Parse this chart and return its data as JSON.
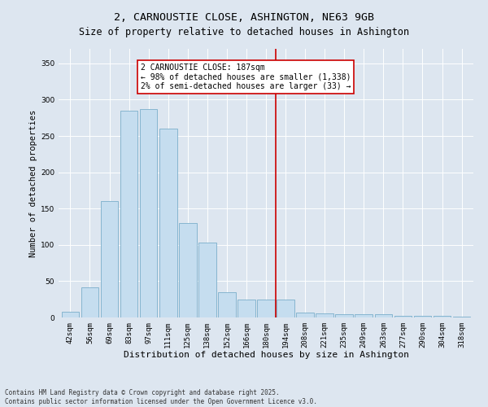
{
  "title": "2, CARNOUSTIE CLOSE, ASHINGTON, NE63 9GB",
  "subtitle": "Size of property relative to detached houses in Ashington",
  "xlabel": "Distribution of detached houses by size in Ashington",
  "ylabel": "Number of detached properties",
  "bar_labels": [
    "42sqm",
    "56sqm",
    "69sqm",
    "83sqm",
    "97sqm",
    "111sqm",
    "125sqm",
    "138sqm",
    "152sqm",
    "166sqm",
    "180sqm",
    "194sqm",
    "208sqm",
    "221sqm",
    "235sqm",
    "249sqm",
    "263sqm",
    "277sqm",
    "290sqm",
    "304sqm",
    "318sqm"
  ],
  "bar_values": [
    8,
    42,
    160,
    285,
    287,
    260,
    130,
    103,
    35,
    25,
    25,
    25,
    7,
    6,
    5,
    5,
    4,
    2,
    2,
    2,
    1
  ],
  "bar_color": "#c5ddef",
  "bar_edge_color": "#7aaecb",
  "vline_x": 10.5,
  "vline_color": "#cc0000",
  "annotation_text": "2 CARNOUSTIE CLOSE: 187sqm\n← 98% of detached houses are smaller (1,338)\n2% of semi-detached houses are larger (33) →",
  "annotation_box_color": "#ffffff",
  "annotation_box_edge": "#cc0000",
  "ylim": [
    0,
    370
  ],
  "yticks": [
    0,
    50,
    100,
    150,
    200,
    250,
    300,
    350
  ],
  "background_color": "#dde6f0",
  "plot_background": "#dde6f0",
  "footer": "Contains HM Land Registry data © Crown copyright and database right 2025.\nContains public sector information licensed under the Open Government Licence v3.0.",
  "title_fontsize": 9.5,
  "subtitle_fontsize": 8.5,
  "xlabel_fontsize": 8,
  "ylabel_fontsize": 7.5,
  "tick_fontsize": 6.5,
  "annotation_fontsize": 7,
  "footer_fontsize": 5.5
}
